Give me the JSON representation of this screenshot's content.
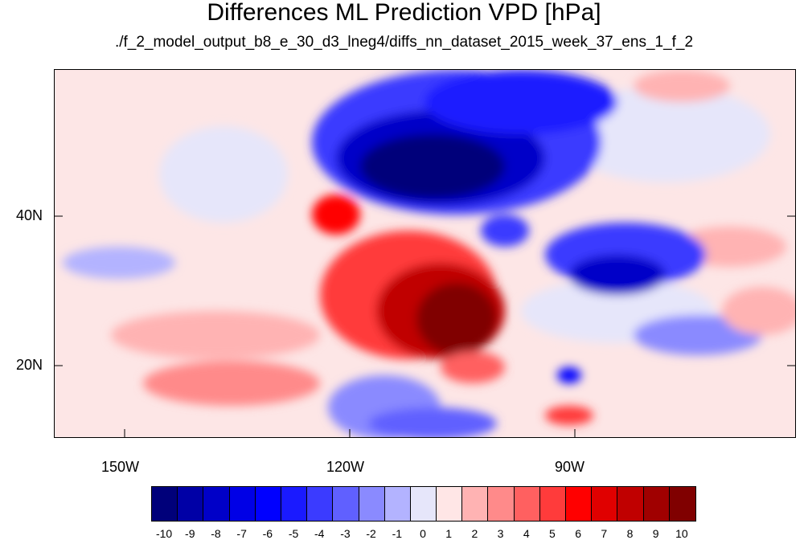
{
  "title": "Differences ML Prediction VPD [hPa]",
  "subtitle": "./f_2_model_output_b8_e_30_d3_lneg4/diffs_nn_dataset_2015_week_37_ens_1_f_2",
  "map": {
    "lat_labels": [
      "40N",
      "20N"
    ],
    "lon_labels": [
      "150W",
      "120W",
      "90W"
    ]
  },
  "colorbar": {
    "labels": [
      "-10",
      "-9",
      "-8",
      "-7",
      "-6",
      "-5",
      "-4",
      "-3",
      "-2",
      "-1",
      "0",
      "1",
      "2",
      "3",
      "4",
      "5",
      "6",
      "7",
      "8",
      "9",
      "10"
    ],
    "colors": [
      "#00007a",
      "#0000a6",
      "#0000c8",
      "#0000e6",
      "#0000ff",
      "#1a1aff",
      "#3b3bff",
      "#6060ff",
      "#8a8aff",
      "#b3b3ff",
      "#e6e6fa",
      "#ffe6e6",
      "#ffb3b3",
      "#ff8a8a",
      "#ff6060",
      "#ff3b3b",
      "#ff0000",
      "#e00000",
      "#c00000",
      "#a00000",
      "#800000"
    ]
  }
}
